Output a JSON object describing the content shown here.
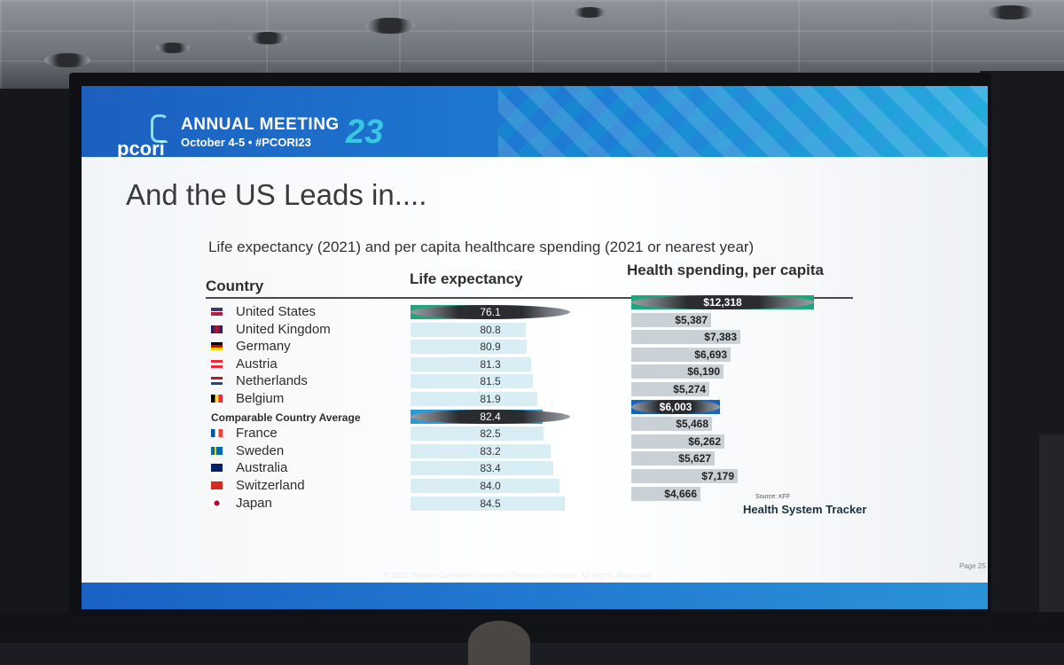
{
  "slide": {
    "brand": "pcori",
    "meeting_title": "ANNUAL MEETING",
    "meeting_year": "23",
    "meeting_date": "October 4-5 • #PCORI23",
    "title": "And the US Leads in....",
    "subtitle": "Life expectancy (2021) and per capita healthcare spending (2021 or nearest year)",
    "columns": {
      "country": "Country",
      "life_expectancy": "Life expectancy",
      "spending": "Health spending, per capita"
    },
    "source_label": "Source: KFF",
    "source_name": "Health System Tracker",
    "copyright": "© 2023 Patient-Centered Outcomes Research Institute. All Rights Reserved.",
    "page": "Page 25"
  },
  "colors": {
    "highlight_us": "#1fa67a",
    "highlight_avg_life": "#2a9bd6",
    "highlight_avg_spend": "#1565c0",
    "bar_life": "#d8eef4",
    "bar_spend": "#c9d0d6",
    "banner": "#1e7fd6"
  },
  "rows": [
    {
      "country": "United States",
      "flag": "us-flag-icon",
      "life_expectancy": "76.1",
      "spending": "$12,318",
      "life_value": 76.1,
      "spend_value": 12318,
      "highlight": "us"
    },
    {
      "country": "United Kingdom",
      "flag": "uk-flag-icon",
      "life_expectancy": "80.8",
      "spending": "$5,387",
      "life_value": 80.8,
      "spend_value": 5387
    },
    {
      "country": "Germany",
      "flag": "germany-flag-icon",
      "life_expectancy": "80.9",
      "spending": "$7,383",
      "life_value": 80.9,
      "spend_value": 7383
    },
    {
      "country": "Austria",
      "flag": "austria-flag-icon",
      "life_expectancy": "81.3",
      "spending": "$6,693",
      "life_value": 81.3,
      "spend_value": 6693
    },
    {
      "country": "Netherlands",
      "flag": "netherlands-flag-icon",
      "life_expectancy": "81.5",
      "spending": "$6,190",
      "life_value": 81.5,
      "spend_value": 6190
    },
    {
      "country": "Belgium",
      "flag": "belgium-flag-icon",
      "life_expectancy": "81.9",
      "spending": "$5,274",
      "life_value": 81.9,
      "spend_value": 5274
    },
    {
      "country": "Comparable Country Average",
      "flag": "",
      "life_expectancy": "82.4",
      "spending": "$6,003",
      "life_value": 82.4,
      "spend_value": 6003,
      "highlight": "avg"
    },
    {
      "country": "France",
      "flag": "france-flag-icon",
      "life_expectancy": "82.5",
      "spending": "$5,468",
      "life_value": 82.5,
      "spend_value": 5468
    },
    {
      "country": "Sweden",
      "flag": "sweden-flag-icon",
      "life_expectancy": "83.2",
      "spending": "$6,262",
      "life_value": 83.2,
      "spend_value": 6262
    },
    {
      "country": "Australia",
      "flag": "australia-flag-icon",
      "life_expectancy": "83.4",
      "spending": "$5,627",
      "life_value": 83.4,
      "spend_value": 5627
    },
    {
      "country": "Switzerland",
      "flag": "switzerland-flag-icon",
      "life_expectancy": "84.0",
      "spending": "$7,179",
      "life_value": 84.0,
      "spend_value": 7179
    },
    {
      "country": "Japan",
      "flag": "japan-flag-icon",
      "life_expectancy": "84.5",
      "spending": "$4,666",
      "life_value": 84.5,
      "spend_value": 4666
    }
  ]
}
